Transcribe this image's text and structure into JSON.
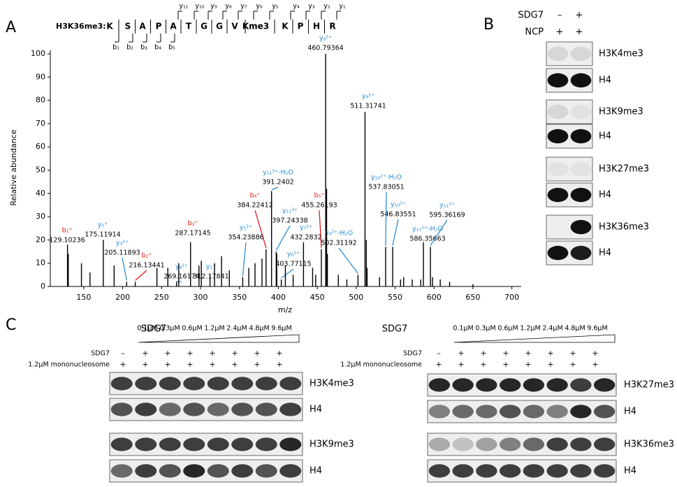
{
  "panel_labels": [
    "A",
    "B",
    "C"
  ],
  "sequence": {
    "title": "H3K36me3:",
    "residues": [
      "K",
      "S",
      "A",
      "P",
      "A",
      "T",
      "G",
      "G",
      "V",
      "Kme3",
      "K",
      "P",
      "H",
      "R"
    ],
    "y_ions": [
      "y₁₁",
      "y₁₀",
      "y₉",
      "y₈",
      "y₇",
      "y₆",
      "y₅",
      "y₄",
      "y₃",
      "y₂",
      "y₁"
    ],
    "b_ions": [
      "b₁",
      "b₂",
      "b₃",
      "b₄",
      "b₅"
    ]
  },
  "chart_data": {
    "type": "spectrum",
    "x_label": "m/z",
    "y_label": "Relative abundance",
    "xlim": [
      107,
      712
    ],
    "xticks": [
      150,
      200,
      250,
      300,
      350,
      400,
      450,
      500,
      550,
      600,
      650,
      700
    ],
    "ylim": [
      0,
      100
    ],
    "yticks": [
      0,
      10,
      20,
      30,
      40,
      50,
      60,
      70,
      80,
      90,
      100
    ],
    "series": [
      {
        "name": "b ions",
        "color": "#e31a1c",
        "ion": [
          "b₁⁺",
          "b₂⁺",
          "b₃⁺",
          "b₄⁺",
          "b₅⁺"
        ],
        "x": [
          129.10236,
          216.13441,
          287.17145,
          384.22412,
          455.26193
        ],
        "values": [
          18,
          2,
          19,
          16,
          16
        ]
      },
      {
        "name": "y ions",
        "color": "#2b8fd6",
        "ion": [
          "y₁⁺",
          "y₃²⁺",
          "y₄²⁺",
          "y₂⁺",
          "y₅²⁺",
          "y₁₁³⁺-H₂O",
          "y₁₁³⁺",
          "y₆²⁺",
          "y₇²⁺",
          "y₈²⁺",
          "y₉²⁺-H₂O",
          "y₉²⁺",
          "y₁₀²⁺-H₂O",
          "y₁₀²⁺",
          "y₁₁²⁺-H₂O",
          "y₁₁²⁺"
        ],
        "x": [
          175.11914,
          205.11893,
          269.16174,
          312.17841,
          354.23886,
          391.2402,
          397.24338,
          403.77115,
          432.2832,
          460.79364,
          502.31192,
          511.31741,
          537.83051,
          546.83551,
          586.35663,
          595.36169
        ],
        "values": [
          20,
          2,
          2,
          5,
          4,
          41,
          15,
          3,
          19,
          100,
          5,
          75,
          17,
          17,
          19,
          17
        ]
      },
      {
        "name": "other",
        "color": "#000000",
        "x": [
          130.1,
          147,
          158,
          189,
          244,
          258,
          272,
          298,
          301,
          318,
          327,
          337,
          362,
          370,
          379,
          398,
          409,
          419,
          444,
          448,
          462,
          463,
          477,
          488,
          513,
          514,
          530,
          557,
          561,
          572,
          583,
          598,
          608,
          620,
          650
        ],
        "values": [
          14,
          10,
          6,
          9,
          8,
          8,
          10,
          9,
          11,
          10,
          13,
          7,
          8,
          10,
          12,
          14,
          9,
          5,
          8,
          5,
          42,
          14,
          5,
          3,
          20,
          8,
          4,
          3,
          4,
          3,
          3,
          4,
          3,
          2,
          1
        ]
      }
    ]
  },
  "panel_b": {
    "header": [
      {
        "label": "SDG7",
        "signs": [
          "–",
          "+"
        ]
      },
      {
        "label": "NCP",
        "signs": [
          "+",
          "+"
        ]
      }
    ],
    "blots": [
      "H3K4me3",
      "H4",
      "H3K9me3",
      "H4",
      "H3K27me3",
      "H4",
      "H3K36me3",
      "H4"
    ]
  },
  "panel_c": [
    {
      "title": "SDG7",
      "concentrations": [
        "0.1μM",
        "0.3μM",
        "0.6μM",
        "1.2μM",
        "2.4μM",
        "4.8μM",
        "9.6μM"
      ],
      "rows": [
        {
          "label": "SDG7",
          "signs": [
            "–",
            "+",
            "+",
            "+",
            "+",
            "+",
            "+",
            "+"
          ]
        },
        {
          "label": "1.2μM mononucleosome",
          "signs": [
            "+",
            "+",
            "+",
            "+",
            "+",
            "+",
            "+",
            "+"
          ]
        }
      ],
      "blots": [
        "H3K4me3",
        "H4",
        "H3K9me3",
        "H4"
      ]
    },
    {
      "title": "SDG7",
      "concentrations": [
        "0.1μM",
        "0.3μM",
        "0.6μM",
        "1.2μM",
        "2.4μM",
        "4.8μM",
        "9.6μM"
      ],
      "rows": [
        {
          "label": "SDG7",
          "signs": [
            "–",
            "+",
            "+",
            "+",
            "+",
            "+",
            "+",
            "+"
          ]
        },
        {
          "label": "1.2μM mononucleosome",
          "signs": [
            "+",
            "+",
            "+",
            "+",
            "+",
            "+",
            "+",
            "+"
          ]
        }
      ],
      "blots": [
        "H3K27me3",
        "H4",
        "H3K36me3",
        "H4"
      ]
    }
  ]
}
